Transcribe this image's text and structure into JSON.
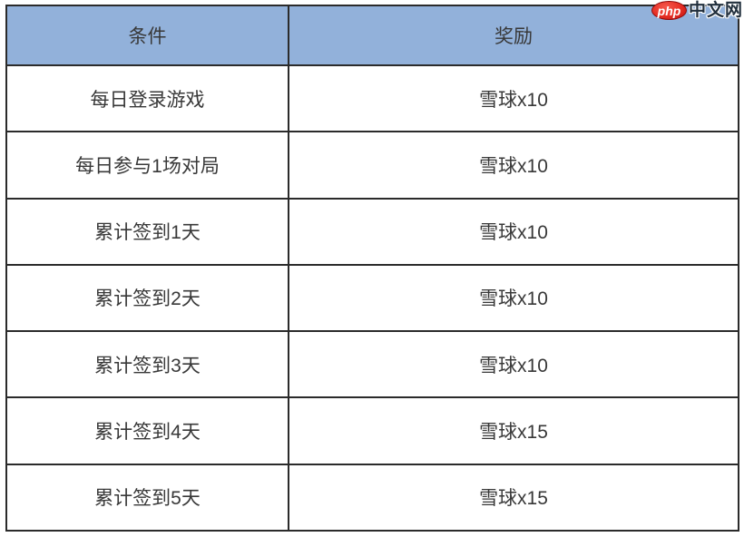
{
  "table": {
    "headers": {
      "condition": "条件",
      "reward": "奖励"
    },
    "rows": [
      {
        "condition": "每日登录游戏",
        "reward": "雪球x10"
      },
      {
        "condition": "每日参与1场对局",
        "reward": "雪球x10"
      },
      {
        "condition": "累计签到1天",
        "reward": "雪球x10"
      },
      {
        "condition": "累计签到2天",
        "reward": "雪球x10"
      },
      {
        "condition": "累计签到3天",
        "reward": "雪球x10"
      },
      {
        "condition": "累计签到4天",
        "reward": "雪球x15"
      },
      {
        "condition": "累计签到5天",
        "reward": "雪球x15"
      }
    ],
    "colors": {
      "header_bg": "#92b1da",
      "border": "#2b2b2b",
      "text": "#383838"
    }
  },
  "watermark": {
    "badge_text": "php",
    "site_text": "中文网",
    "badge_color": "#e62e24"
  }
}
